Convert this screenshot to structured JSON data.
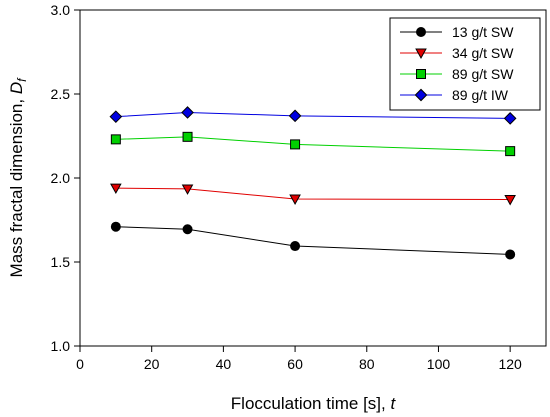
{
  "chart_data": {
    "type": "line",
    "xlabel": "Flocculation time [s], ",
    "xlabel_var": "t",
    "ylabel": "Mass fractal dimension, ",
    "ylabel_var": "D",
    "ylabel_sub": "f",
    "xlim": [
      0,
      130
    ],
    "ylim": [
      1.0,
      3.0
    ],
    "xticks": [
      0,
      20,
      40,
      60,
      80,
      100,
      120
    ],
    "yticks": [
      1.0,
      1.5,
      2.0,
      2.5,
      3.0
    ],
    "xtick_labels": [
      "0",
      "20",
      "40",
      "60",
      "80",
      "100",
      "120"
    ],
    "ytick_labels": [
      "1.0",
      "1.5",
      "2.0",
      "2.5",
      "3.0"
    ],
    "grid": false,
    "legend_position": "top-right",
    "x": [
      10,
      30,
      60,
      120
    ],
    "series": [
      {
        "name": "13 g/t SW",
        "values": [
          1.71,
          1.695,
          1.595,
          1.545
        ],
        "color": "#000000",
        "marker": "circle"
      },
      {
        "name": "34 g/t SW",
        "values": [
          1.94,
          1.935,
          1.875,
          1.872
        ],
        "color": "#e00000",
        "marker": "triangle-down"
      },
      {
        "name": "89 g/t SW",
        "values": [
          2.23,
          2.245,
          2.2,
          2.16
        ],
        "color": "#00d000",
        "marker": "square"
      },
      {
        "name": "89 g/t  IW",
        "values": [
          2.365,
          2.39,
          2.37,
          2.355
        ],
        "color": "#0000e0",
        "marker": "diamond"
      }
    ]
  }
}
